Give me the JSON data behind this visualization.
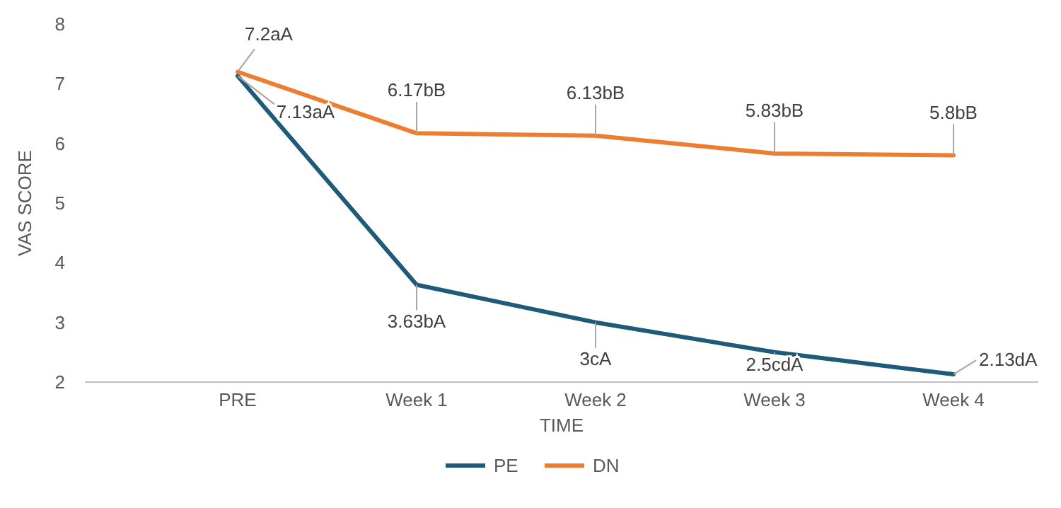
{
  "chart_data": {
    "type": "line",
    "xlabel": "TIME",
    "ylabel": "VAS SCORE",
    "categories": [
      "PRE",
      "Week 1",
      "Week 2",
      "Week 3",
      "Week 4"
    ],
    "ylim": [
      2,
      8
    ],
    "yticks": [
      2,
      3,
      4,
      5,
      6,
      7,
      8
    ],
    "grid": false,
    "legend": "bottom",
    "marker": "none",
    "line_style": "solid",
    "series": [
      {
        "name": "PE",
        "color": "#1f5a78",
        "values": [
          7.13,
          3.63,
          3,
          2.5,
          2.13
        ],
        "value_labels": [
          "7.13aA",
          "3.63bA",
          "3cA",
          "2.5cdA",
          "2.13dA"
        ]
      },
      {
        "name": "DN",
        "color": "#ed7d31",
        "values": [
          7.2,
          6.17,
          6.13,
          5.83,
          5.8
        ],
        "value_labels": [
          "7.2aA",
          "6.17bB",
          "6.13bB",
          "5.83bB",
          "5.8bB"
        ]
      }
    ]
  }
}
